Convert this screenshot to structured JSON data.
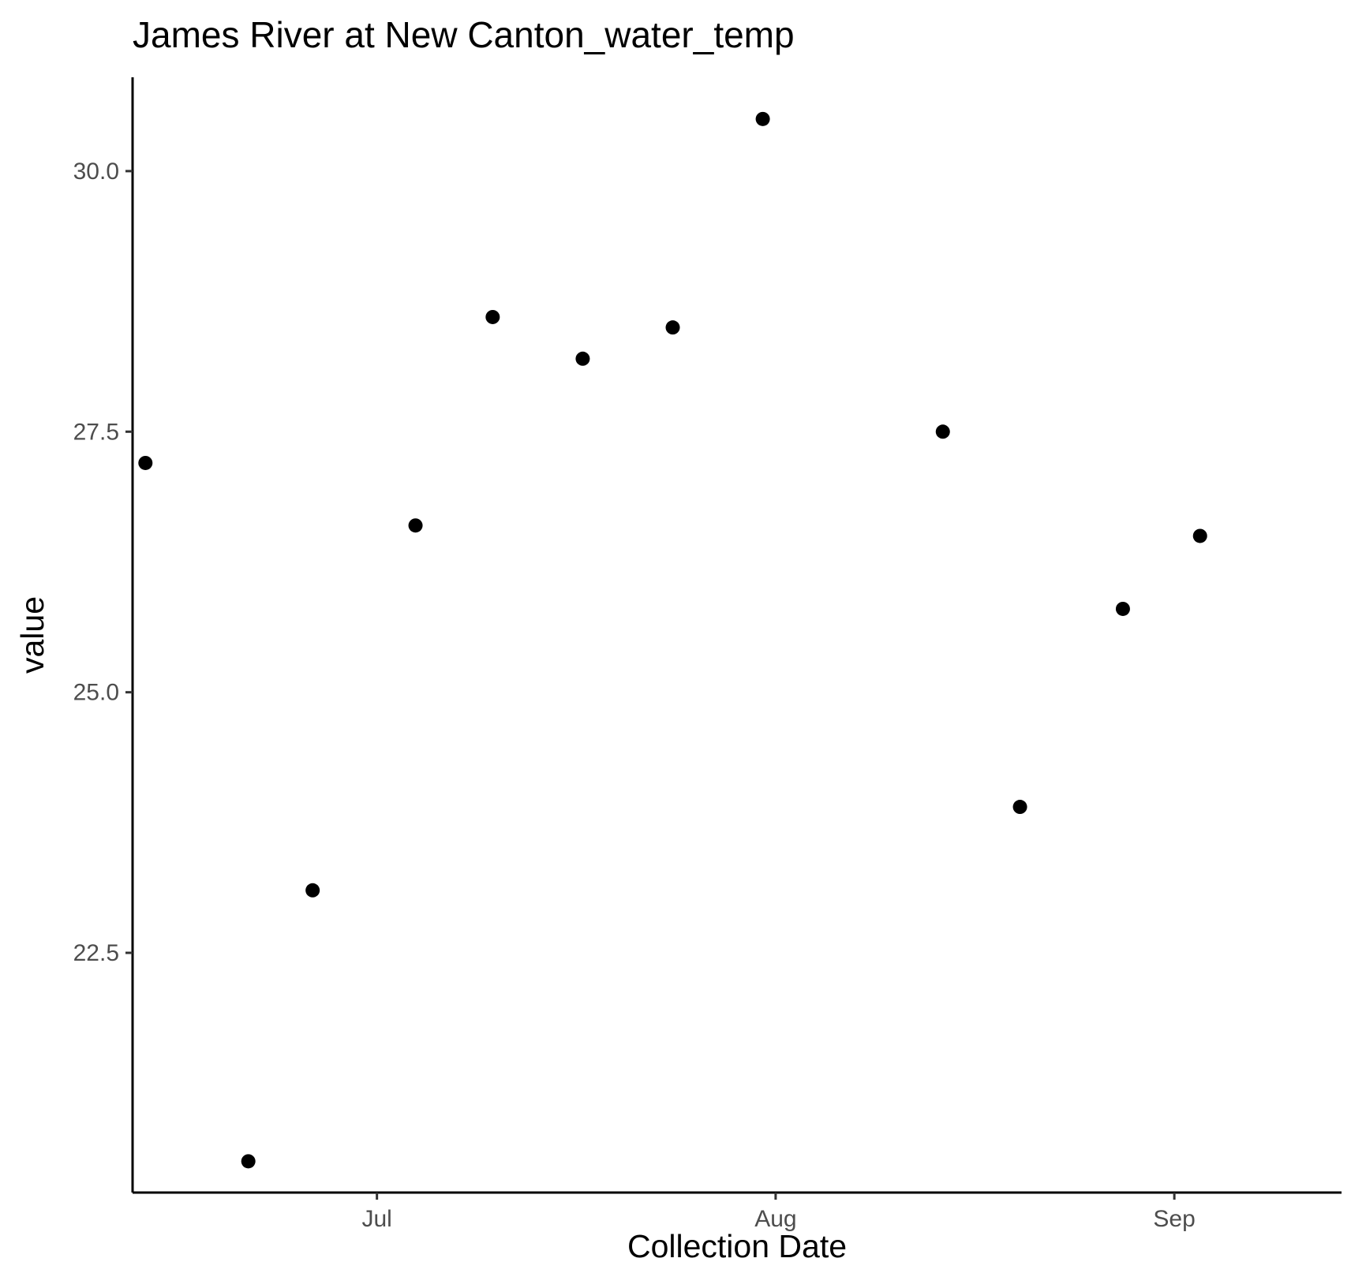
{
  "chart_data": {
    "type": "scatter",
    "title": "James River at New Canton_water_temp",
    "xlabel": "Collection Date",
    "ylabel": "value",
    "x_type": "date",
    "xlim": [
      "2024-06-12",
      "2024-09-14"
    ],
    "ylim": [
      20.2,
      30.9
    ],
    "x_ticks": [
      {
        "value": "2024-07-01",
        "label": "Jul"
      },
      {
        "value": "2024-08-01",
        "label": "Aug"
      },
      {
        "value": "2024-09-01",
        "label": "Sep"
      }
    ],
    "y_ticks": [
      {
        "value": 22.5,
        "label": "22.5"
      },
      {
        "value": 25.0,
        "label": "25.0"
      },
      {
        "value": 27.5,
        "label": "27.5"
      },
      {
        "value": 30.0,
        "label": "30.0"
      }
    ],
    "grid": false,
    "point_color": "#000000",
    "points": [
      {
        "x": "2024-06-13",
        "y": 27.2
      },
      {
        "x": "2024-06-21",
        "y": 20.5
      },
      {
        "x": "2024-06-26",
        "y": 23.1
      },
      {
        "x": "2024-07-04",
        "y": 26.6
      },
      {
        "x": "2024-07-10",
        "y": 28.6
      },
      {
        "x": "2024-07-17",
        "y": 28.2
      },
      {
        "x": "2024-07-24",
        "y": 28.5
      },
      {
        "x": "2024-07-31",
        "y": 30.5
      },
      {
        "x": "2024-08-14",
        "y": 27.5
      },
      {
        "x": "2024-08-20",
        "y": 23.9
      },
      {
        "x": "2024-08-28",
        "y": 25.8
      },
      {
        "x": "2024-09-03",
        "y": 26.5
      }
    ]
  }
}
